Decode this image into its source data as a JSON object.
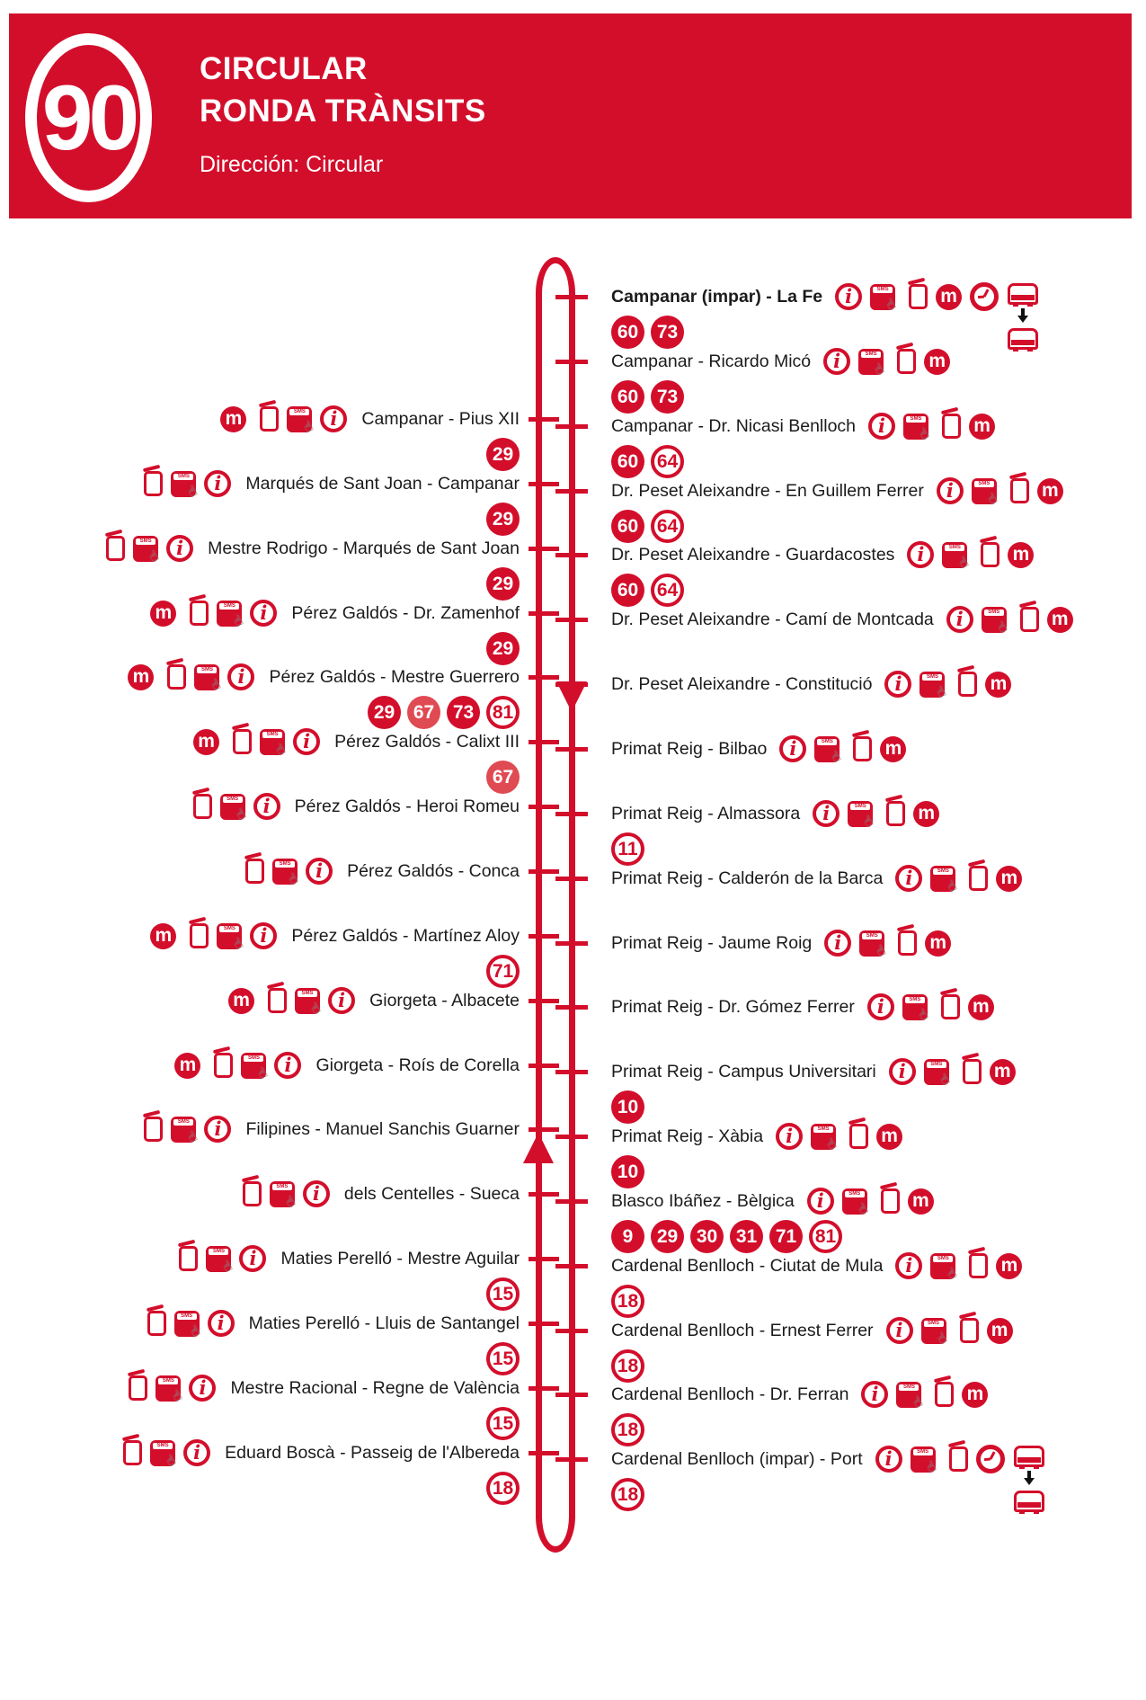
{
  "header": {
    "line_number": "90",
    "title_line1": "CIRCULAR",
    "title_line2": "RONDA TRÀNSITS",
    "direction": "Dirección: Circular"
  },
  "colors": {
    "red": "#D30E2B",
    "badge_light_red": "#E04A52",
    "text": "#1B1B1B"
  },
  "icon_labels": {
    "sms_band": "SMS",
    "hand_glyph": "☝"
  },
  "route": {
    "right_stops": [
      {
        "name": "Campanar (impar) - La Fe",
        "bold": true,
        "icons": [
          "info",
          "sms",
          "pole",
          "metro",
          "clock",
          "bus-transfer"
        ],
        "connections": [
          {
            "line": "60",
            "style": "filled"
          },
          {
            "line": "73",
            "style": "filled"
          }
        ]
      },
      {
        "name": "Campanar - Ricardo Micó",
        "icons": [
          "info",
          "sms",
          "pole",
          "metro"
        ],
        "connections": [
          {
            "line": "60",
            "style": "filled"
          },
          {
            "line": "73",
            "style": "filled"
          }
        ]
      },
      {
        "name": "Campanar - Dr. Nicasi Benlloch",
        "icons": [
          "info",
          "sms",
          "pole",
          "metro"
        ],
        "connections": [
          {
            "line": "60",
            "style": "filled"
          },
          {
            "line": "64",
            "style": "outlined"
          }
        ]
      },
      {
        "name": "Dr. Peset Aleixandre - En Guillem Ferrer",
        "icons": [
          "info",
          "sms",
          "pole",
          "metro"
        ],
        "connections": [
          {
            "line": "60",
            "style": "filled"
          },
          {
            "line": "64",
            "style": "outlined"
          }
        ]
      },
      {
        "name": "Dr. Peset Aleixandre - Guardacostes",
        "icons": [
          "info",
          "sms",
          "pole",
          "metro"
        ],
        "connections": [
          {
            "line": "60",
            "style": "filled"
          },
          {
            "line": "64",
            "style": "outlined"
          }
        ]
      },
      {
        "name": "Dr. Peset Aleixandre - Camí de Montcada",
        "icons": [
          "info",
          "sms",
          "pole",
          "metro"
        ],
        "connections": []
      },
      {
        "name": "Dr. Peset Aleixandre - Constitució",
        "icons": [
          "info",
          "sms",
          "pole",
          "metro"
        ],
        "connections": []
      },
      {
        "name": "Primat Reig - Bilbao",
        "icons": [
          "info",
          "sms",
          "pole",
          "metro"
        ],
        "connections": []
      },
      {
        "name": "Primat Reig - Almassora",
        "icons": [
          "info",
          "sms",
          "pole",
          "metro"
        ],
        "connections": [
          {
            "line": "11",
            "style": "outlined"
          }
        ]
      },
      {
        "name": "Primat Reig - Calderón de la Barca",
        "icons": [
          "info",
          "sms",
          "pole",
          "metro"
        ],
        "connections": []
      },
      {
        "name": "Primat Reig - Jaume Roig",
        "icons": [
          "info",
          "sms",
          "pole",
          "metro"
        ],
        "connections": []
      },
      {
        "name": "Primat Reig - Dr. Gómez Ferrer",
        "icons": [
          "info",
          "sms",
          "pole",
          "metro"
        ],
        "connections": []
      },
      {
        "name": "Primat Reig - Campus Universitari",
        "icons": [
          "info",
          "sms",
          "pole",
          "metro"
        ],
        "connections": [
          {
            "line": "10",
            "style": "filled"
          }
        ]
      },
      {
        "name": "Primat Reig - Xàbia",
        "icons": [
          "info",
          "sms",
          "pole",
          "metro"
        ],
        "connections": [
          {
            "line": "10",
            "style": "filled"
          }
        ]
      },
      {
        "name": "Blasco Ibáñez - Bèlgica",
        "icons": [
          "info",
          "sms",
          "pole",
          "metro"
        ],
        "connections": [
          {
            "line": "9",
            "style": "filled"
          },
          {
            "line": "29",
            "style": "filled"
          },
          {
            "line": "30",
            "style": "filled"
          },
          {
            "line": "31",
            "style": "filled"
          },
          {
            "line": "71",
            "style": "filled"
          },
          {
            "line": "81",
            "style": "outlined"
          }
        ]
      },
      {
        "name": "Cardenal Benlloch - Ciutat de Mula",
        "icons": [
          "info",
          "sms",
          "pole",
          "metro"
        ],
        "connections": [
          {
            "line": "18",
            "style": "outlined"
          }
        ]
      },
      {
        "name": "Cardenal Benlloch - Ernest Ferrer",
        "icons": [
          "info",
          "sms",
          "pole",
          "metro"
        ],
        "connections": [
          {
            "line": "18",
            "style": "outlined"
          }
        ]
      },
      {
        "name": "Cardenal Benlloch - Dr. Ferran",
        "icons": [
          "info",
          "sms",
          "pole",
          "metro"
        ],
        "connections": [
          {
            "line": "18",
            "style": "outlined"
          }
        ]
      },
      {
        "name": "Cardenal Benlloch (impar) - Port",
        "icons": [
          "info",
          "sms",
          "pole",
          "clock",
          "bus-transfer"
        ],
        "connections": [
          {
            "line": "18",
            "style": "outlined"
          }
        ]
      }
    ],
    "left_stops": [
      {
        "name": "Campanar - Pius XII",
        "icons": [
          "metro",
          "pole",
          "sms",
          "info"
        ],
        "connections": [
          {
            "line": "29",
            "style": "filled"
          }
        ]
      },
      {
        "name": "Marqués de Sant Joan - Campanar",
        "icons": [
          "pole",
          "sms",
          "info"
        ],
        "connections": [
          {
            "line": "29",
            "style": "filled"
          }
        ]
      },
      {
        "name": "Mestre Rodrigo - Marqués de Sant Joan",
        "icons": [
          "pole",
          "sms",
          "info"
        ],
        "connections": [
          {
            "line": "29",
            "style": "filled"
          }
        ]
      },
      {
        "name": "Pérez Galdós - Dr. Zamenhof",
        "icons": [
          "metro",
          "pole",
          "sms",
          "info"
        ],
        "connections": [
          {
            "line": "29",
            "style": "filled"
          }
        ]
      },
      {
        "name": "Pérez Galdós - Mestre Guerrero",
        "icons": [
          "metro",
          "pole",
          "sms",
          "info"
        ],
        "connections": [
          {
            "line": "29",
            "style": "filled"
          },
          {
            "line": "67",
            "style": "filled-light"
          },
          {
            "line": "73",
            "style": "filled"
          },
          {
            "line": "81",
            "style": "outlined"
          }
        ]
      },
      {
        "name": "Pérez Galdós - Calixt III",
        "icons": [
          "metro",
          "pole",
          "sms",
          "info"
        ],
        "connections": [
          {
            "line": "67",
            "style": "filled-light"
          }
        ]
      },
      {
        "name": "Pérez Galdós - Heroi Romeu",
        "icons": [
          "pole",
          "sms",
          "info"
        ],
        "connections": []
      },
      {
        "name": "Pérez Galdós - Conca",
        "icons": [
          "pole",
          "sms",
          "info"
        ],
        "connections": []
      },
      {
        "name": "Pérez Galdós - Martínez Aloy",
        "icons": [
          "metro",
          "pole",
          "sms",
          "info"
        ],
        "connections": [
          {
            "line": "71",
            "style": "outlined"
          }
        ]
      },
      {
        "name": "Giorgeta - Albacete",
        "icons": [
          "metro",
          "pole",
          "sms",
          "info"
        ],
        "connections": []
      },
      {
        "name": "Giorgeta - Roís de Corella",
        "icons": [
          "metro",
          "pole",
          "sms",
          "info"
        ],
        "connections": []
      },
      {
        "name": "Filipines - Manuel Sanchis Guarner",
        "icons": [
          "pole",
          "sms",
          "info"
        ],
        "connections": []
      },
      {
        "name": "dels Centelles - Sueca",
        "icons": [
          "pole",
          "sms",
          "info"
        ],
        "connections": []
      },
      {
        "name": "Maties Perelló - Mestre Aguilar",
        "icons": [
          "pole",
          "sms",
          "info"
        ],
        "connections": [
          {
            "line": "15",
            "style": "outlined"
          }
        ]
      },
      {
        "name": "Maties Perelló - Lluis de Santangel",
        "icons": [
          "pole",
          "sms",
          "info"
        ],
        "connections": [
          {
            "line": "15",
            "style": "outlined"
          }
        ]
      },
      {
        "name": "Mestre Racional - Regne de València",
        "icons": [
          "pole",
          "sms",
          "info"
        ],
        "connections": [
          {
            "line": "15",
            "style": "outlined"
          }
        ]
      },
      {
        "name": "Eduard Boscà - Passeig de l'Albereda",
        "icons": [
          "pole",
          "sms",
          "info"
        ],
        "connections": [
          {
            "line": "18",
            "style": "outlined"
          }
        ]
      }
    ]
  }
}
